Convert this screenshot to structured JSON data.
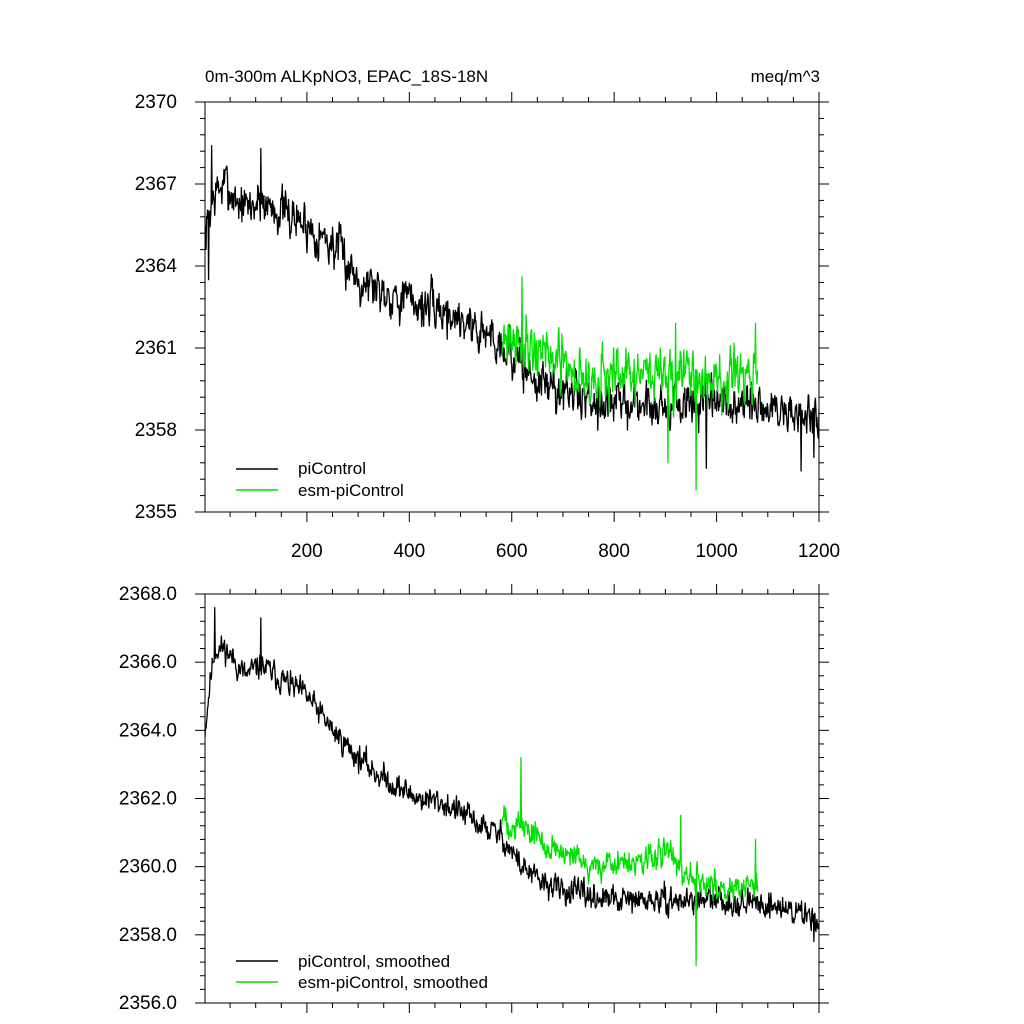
{
  "chart_data": [
    {
      "type": "line",
      "title": "0m-300m ALKpNO3, EPAC_18S-18N",
      "units": "meq/m^3",
      "xlim": [
        1,
        1200
      ],
      "ylim": [
        2355,
        2370
      ],
      "xticks": [
        200,
        400,
        600,
        800,
        1000,
        1200
      ],
      "xtick_labels": [
        "200",
        "400",
        "600",
        "800",
        "1000",
        "1200"
      ],
      "yticks": [
        2355,
        2358,
        2361,
        2364,
        2367,
        2370
      ],
      "ytick_labels": [
        "2355",
        "2358",
        "2361",
        "2364",
        "2367",
        "2370"
      ],
      "legend_position": "bottom-left",
      "series": [
        {
          "name": "piControl",
          "color": "#000000",
          "x_start": 1,
          "x_end": 1200,
          "trend": [
            [
              1,
              2365.0
            ],
            [
              10,
              2366.0
            ],
            [
              20,
              2366.6
            ],
            [
              40,
              2367.0
            ],
            [
              60,
              2366.5
            ],
            [
              80,
              2366.1
            ],
            [
              110,
              2366.4
            ],
            [
              150,
              2366.0
            ],
            [
              200,
              2365.5
            ],
            [
              250,
              2364.8
            ],
            [
              300,
              2363.6
            ],
            [
              340,
              2363.2
            ],
            [
              380,
              2362.9
            ],
            [
              420,
              2362.6
            ],
            [
              460,
              2362.4
            ],
            [
              500,
              2362.1
            ],
            [
              540,
              2361.6
            ],
            [
              580,
              2361.2
            ],
            [
              620,
              2360.3
            ],
            [
              650,
              2359.8
            ],
            [
              700,
              2359.4
            ],
            [
              800,
              2359.0
            ],
            [
              900,
              2358.9
            ],
            [
              1000,
              2358.9
            ],
            [
              1100,
              2358.8
            ],
            [
              1200,
              2358.4
            ]
          ],
          "noise_amplitude": 1.1,
          "noise_seed": 7,
          "peaks": [
            [
              14,
              2368.4
            ],
            [
              110,
              2368.3
            ],
            [
              8,
              2363.5
            ]
          ],
          "troughs": [
            [
              980,
              2356.6
            ],
            [
              1190,
              2357.0
            ],
            [
              1165,
              2356.5
            ]
          ]
        },
        {
          "name": "esm-piControl",
          "color": "#00e000",
          "x_start": 580,
          "x_end": 1080,
          "trend": [
            [
              580,
              2361.5
            ],
            [
              620,
              2361.3
            ],
            [
              650,
              2361.0
            ],
            [
              700,
              2360.3
            ],
            [
              750,
              2359.9
            ],
            [
              800,
              2359.9
            ],
            [
              850,
              2360.0
            ],
            [
              900,
              2360.2
            ],
            [
              960,
              2359.8
            ],
            [
              1000,
              2359.8
            ],
            [
              1050,
              2359.8
            ],
            [
              1080,
              2359.9
            ]
          ],
          "noise_amplitude": 1.3,
          "noise_seed": 21,
          "peaks": [
            [
              620,
              2363.6
            ],
            [
              1076,
              2361.9
            ],
            [
              920,
              2361.9
            ]
          ],
          "troughs": [
            [
              960,
              2355.8
            ],
            [
              905,
              2356.8
            ]
          ]
        }
      ]
    },
    {
      "type": "line",
      "xlim": [
        1,
        1200
      ],
      "ylim": [
        2356,
        2368
      ],
      "xticks": [
        200,
        400,
        600,
        800,
        1000,
        1200
      ],
      "yticks": [
        2356,
        2358,
        2360,
        2362,
        2364,
        2366,
        2368
      ],
      "ytick_labels": [
        "2356.0",
        "2358.0",
        "2360.0",
        "2362.0",
        "2364.0",
        "2366.0",
        "2368.0"
      ],
      "legend_position": "bottom-left",
      "series": [
        {
          "name": "piControl, smoothed",
          "color": "#000000",
          "x_start": 1,
          "x_end": 1200,
          "trend": [
            [
              1,
              2364.0
            ],
            [
              10,
              2365.3
            ],
            [
              20,
              2366.4
            ],
            [
              40,
              2366.4
            ],
            [
              60,
              2366.0
            ],
            [
              80,
              2365.6
            ],
            [
              110,
              2365.9
            ],
            [
              150,
              2365.5
            ],
            [
              200,
              2365.0
            ],
            [
              250,
              2364.0
            ],
            [
              300,
              2363.2
            ],
            [
              340,
              2362.7
            ],
            [
              380,
              2362.3
            ],
            [
              420,
              2362.0
            ],
            [
              460,
              2361.9
            ],
            [
              500,
              2361.6
            ],
            [
              540,
              2361.2
            ],
            [
              580,
              2360.9
            ],
            [
              620,
              2360.0
            ],
            [
              650,
              2359.6
            ],
            [
              700,
              2359.3
            ],
            [
              800,
              2359.0
            ],
            [
              900,
              2359.0
            ],
            [
              1000,
              2359.0
            ],
            [
              1100,
              2358.9
            ],
            [
              1200,
              2358.5
            ]
          ],
          "noise_amplitude": 0.5,
          "noise_seed": 11,
          "peaks": [
            [
              20,
              2367.6
            ],
            [
              110,
              2367.3
            ]
          ],
          "troughs": [
            [
              1190,
              2357.8
            ]
          ]
        },
        {
          "name": "esm-piControl, smoothed",
          "color": "#00e000",
          "x_start": 580,
          "x_end": 1080,
          "trend": [
            [
              580,
              2361.4
            ],
            [
              620,
              2361.2
            ],
            [
              650,
              2360.9
            ],
            [
              700,
              2360.3
            ],
            [
              750,
              2360.0
            ],
            [
              800,
              2360.1
            ],
            [
              850,
              2360.1
            ],
            [
              900,
              2360.4
            ],
            [
              960,
              2359.7
            ],
            [
              1000,
              2359.4
            ],
            [
              1050,
              2359.3
            ],
            [
              1080,
              2359.5
            ]
          ],
          "noise_amplitude": 0.55,
          "noise_seed": 33,
          "peaks": [
            [
              618,
              2363.2
            ],
            [
              1076,
              2360.8
            ],
            [
              930,
              2361.5
            ]
          ],
          "troughs": [
            [
              960,
              2357.1
            ]
          ]
        }
      ]
    }
  ]
}
